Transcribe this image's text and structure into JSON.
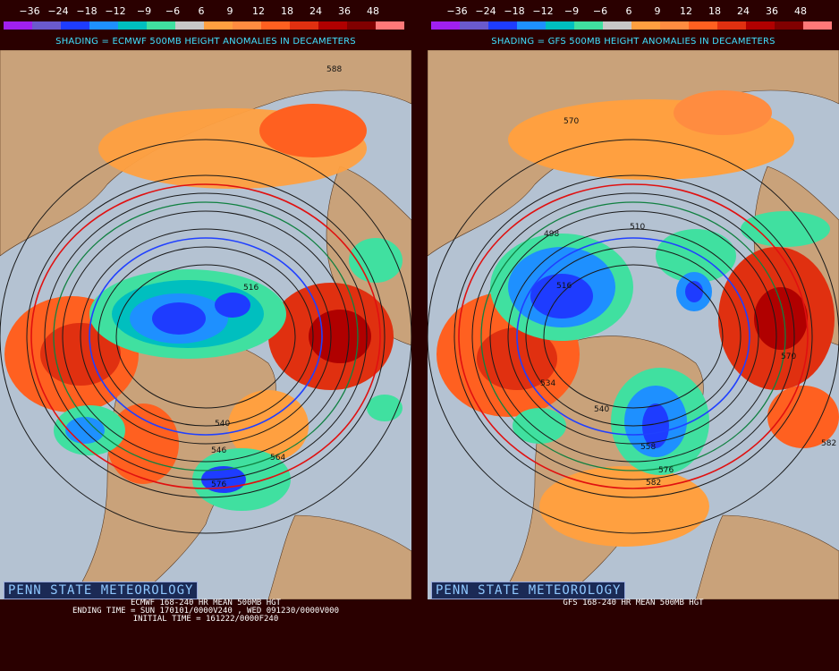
{
  "legend": {
    "labels": [
      "−36",
      "−24",
      "−18",
      "−12",
      "−9",
      "−6",
      "6",
      "9",
      "12",
      "18",
      "24",
      "36",
      "48"
    ],
    "colors": [
      "#a020f0",
      "#6a5acd",
      "#1e3cff",
      "#1e90ff",
      "#00bfbf",
      "#40e0a0",
      "#c8c8c8",
      "#ffa040",
      "#ff8c40",
      "#ff6020",
      "#e03010",
      "#b00000",
      "#800000",
      "#ff7878"
    ]
  },
  "left": {
    "shading_title": "SHADING = ECMWF 500MB HEIGHT ANOMALIES IN DECAMETERS",
    "logo": "PENN STATE METEOROLOGY",
    "caption_line1": "ECMWF 168-240 HR MEAN 500MB HGT",
    "caption_line2": "ENDING TIME = SUN 170101/0000V240 , WED 091230/0000V000",
    "caption_line3": "INITIAL TIME = 161222/0000F240",
    "contour_labels": [
      "588",
      "540",
      "576",
      "564",
      "516",
      "546"
    ]
  },
  "right": {
    "shading_title": "SHADING = GFS 500MB HEIGHT ANOMALIES IN DECAMETERS",
    "logo": "PENN STATE METEOROLOGY",
    "caption_line1": "GFS 168-240 HR MEAN 500MB HGT",
    "contour_labels": [
      "570",
      "498",
      "510",
      "516",
      "534",
      "570",
      "582",
      "582",
      "540",
      "558",
      "576"
    ]
  }
}
